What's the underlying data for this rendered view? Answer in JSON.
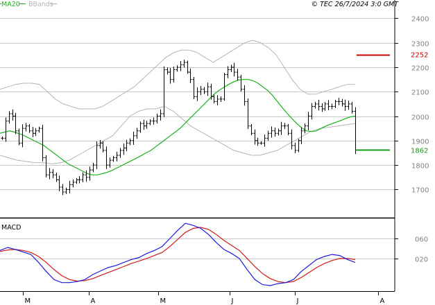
{
  "legend": {
    "ma20": {
      "label": "MA20",
      "color": "#1bb01b"
    },
    "bbands": {
      "label": "BBands",
      "color": "#b4b4b4"
    }
  },
  "copyright": "© TEC 26/7/2024 3:0 GMT",
  "macd_label": "MACD",
  "colors": {
    "price_bar": "#000000",
    "grid": "#c8c8c8",
    "resistance": "#cc0000",
    "support": "#139c13",
    "macd_line": "#1a1adf",
    "signal_line": "#d01a1a"
  },
  "chart_data": [
    {
      "type": "ohlc",
      "x_labels": [
        "M",
        "A",
        "M",
        "J",
        "J",
        "A"
      ],
      "y_ticks": [
        1700,
        1800,
        1900,
        2000,
        2100,
        2200,
        2300,
        2400
      ],
      "ylim": [
        1585,
        2475
      ],
      "price_labels": [
        {
          "value": 2252,
          "text": "2252",
          "color": "#cc0000"
        },
        {
          "value": 1862,
          "text": "1862",
          "color": "#139c13"
        }
      ],
      "levels": [
        {
          "name": "resistance",
          "value": 2252
        },
        {
          "name": "support",
          "value": 1862
        }
      ],
      "close": [
        1910,
        1980,
        2010,
        2000,
        1940,
        1890,
        1950,
        1960,
        1940,
        1930,
        1940,
        1950,
        1830,
        1760,
        1770,
        1760,
        1740,
        1710,
        1690,
        1700,
        1720,
        1730,
        1740,
        1740,
        1760,
        1750,
        1780,
        1800,
        1880,
        1890,
        1860,
        1800,
        1820,
        1830,
        1840,
        1860,
        1870,
        1890,
        1900,
        1920,
        1940,
        1970,
        1960,
        1970,
        1980,
        1980,
        2000,
        2010,
        2190,
        2180,
        2150,
        2190,
        2200,
        2210,
        2220,
        2180,
        2150,
        2080,
        2100,
        2110,
        2100,
        2120,
        2080,
        2060,
        2070,
        2070,
        2170,
        2190,
        2200,
        2180,
        2160,
        2110,
        2060,
        1960,
        1930,
        1900,
        1890,
        1890,
        1910,
        1930,
        1940,
        1930,
        1940,
        1960,
        1960,
        1930,
        1880,
        1860,
        1900,
        1940,
        1960,
        2000,
        2040,
        2050,
        2040,
        2030,
        2050,
        2040,
        2040,
        2060,
        2060,
        2050,
        2040,
        2050,
        2020,
        1862
      ],
      "ma20": [
        1930,
        1935,
        1940,
        1935,
        1928,
        1920,
        1910,
        1900,
        1890,
        1880,
        1865,
        1850,
        1835,
        1820,
        1805,
        1795,
        1785,
        1775,
        1765,
        1760,
        1760,
        1765,
        1770,
        1778,
        1788,
        1798,
        1808,
        1818,
        1828,
        1838,
        1850,
        1860,
        1875,
        1890,
        1905,
        1920,
        1935,
        1950,
        1970,
        1990,
        2010,
        2030,
        2050,
        2070,
        2090,
        2105,
        2118,
        2130,
        2140,
        2148,
        2150,
        2150,
        2145,
        2135,
        2120,
        2105,
        2085,
        2060,
        2035,
        2012,
        1990,
        1970,
        1952,
        1940,
        1937,
        1940,
        1950,
        1960,
        1968,
        1975,
        1982,
        1990,
        1997,
        2000
      ],
      "bb_upper": [
        2110,
        2120,
        2130,
        2135,
        2135,
        2130,
        2100,
        2070,
        2050,
        2040,
        2030,
        2030,
        2030,
        2040,
        2060,
        2080,
        2100,
        2120,
        2150,
        2180,
        2210,
        2240,
        2260,
        2270,
        2270,
        2260,
        2240,
        2220,
        2240,
        2260,
        2280,
        2300,
        2310,
        2300,
        2280,
        2250,
        2200,
        2150,
        2110,
        2090,
        2090,
        2100,
        2110,
        2120,
        2130,
        2130
      ],
      "bb_lower": [
        1840,
        1830,
        1820,
        1815,
        1810,
        1810,
        1805,
        1810,
        1820,
        1840,
        1860,
        1880,
        1900,
        1920,
        1960,
        2000,
        2020,
        2030,
        2030,
        2040,
        2020,
        1990,
        1960,
        1940,
        1920,
        1900,
        1880,
        1860,
        1850,
        1840,
        1840,
        1850,
        1860,
        1880,
        1900,
        1920,
        1940,
        1950,
        1955,
        1960,
        1965,
        1970
      ]
    },
    {
      "type": "line",
      "title": "MACD",
      "y_ticks": [
        20,
        60
      ],
      "ylim": [
        -45,
        100
      ],
      "x_labels": [
        "M",
        "A",
        "M",
        "J",
        "J",
        "A"
      ],
      "series": [
        {
          "name": "MACD",
          "color": "#1a1adf",
          "values": [
            36,
            42,
            38,
            33,
            28,
            12,
            -6,
            -22,
            -28,
            -28,
            -26,
            -22,
            -12,
            -5,
            2,
            6,
            12,
            18,
            22,
            30,
            36,
            44,
            60,
            76,
            90,
            86,
            80,
            68,
            52,
            38,
            30,
            20,
            -2,
            -22,
            -32,
            -34,
            -30,
            -28,
            -22,
            -6,
            6,
            18,
            24,
            28,
            26,
            18,
            12
          ]
        },
        {
          "name": "Signal",
          "color": "#d01a1a",
          "values": [
            34,
            37,
            38,
            36,
            32,
            24,
            12,
            -2,
            -14,
            -22,
            -25,
            -24,
            -20,
            -14,
            -8,
            -2,
            4,
            10,
            15,
            20,
            26,
            32,
            44,
            58,
            72,
            80,
            82,
            78,
            68,
            56,
            46,
            36,
            20,
            4,
            -10,
            -20,
            -26,
            -28,
            -26,
            -18,
            -8,
            2,
            10,
            16,
            20,
            20,
            18
          ]
        }
      ]
    }
  ]
}
